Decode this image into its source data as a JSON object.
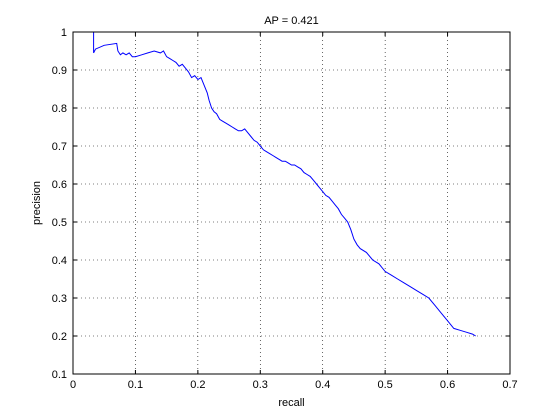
{
  "chart_data": {
    "type": "line",
    "title": "AP = 0.421",
    "xlabel": "recall",
    "ylabel": "precision",
    "xlim": [
      0,
      0.7
    ],
    "ylim": [
      0.1,
      1
    ],
    "xticks": [
      0,
      0.1,
      0.2,
      0.3,
      0.4,
      0.5,
      0.6,
      0.7
    ],
    "yticks": [
      0.1,
      0.2,
      0.3,
      0.4,
      0.5,
      0.6,
      0.7,
      0.8,
      0.9,
      1
    ],
    "xtick_labels": [
      "0",
      "0.1",
      "0.2",
      "0.3",
      "0.4",
      "0.5",
      "0.6",
      "0.7"
    ],
    "ytick_labels": [
      "0.1",
      "0.2",
      "0.3",
      "0.4",
      "0.5",
      "0.6",
      "0.7",
      "0.8",
      "0.9",
      "1"
    ],
    "grid": true,
    "grid_style": "dotted",
    "line_color": "#0000ff",
    "series": [
      {
        "x": [
          0.033,
          0.033,
          0.036,
          0.05,
          0.07,
          0.072,
          0.076,
          0.08,
          0.085,
          0.09,
          0.095,
          0.1,
          0.11,
          0.12,
          0.13,
          0.14,
          0.145,
          0.15,
          0.155,
          0.16,
          0.165,
          0.17,
          0.175,
          0.18,
          0.185,
          0.19,
          0.195,
          0.2,
          0.205,
          0.21,
          0.215,
          0.218,
          0.222,
          0.226,
          0.23,
          0.235,
          0.24,
          0.245,
          0.25,
          0.255,
          0.26,
          0.265,
          0.27,
          0.275,
          0.28,
          0.285,
          0.29,
          0.295,
          0.3,
          0.305,
          0.31,
          0.315,
          0.32,
          0.325,
          0.33,
          0.335,
          0.34,
          0.345,
          0.35,
          0.355,
          0.36,
          0.365,
          0.37,
          0.375,
          0.38,
          0.385,
          0.39,
          0.395,
          0.4,
          0.405,
          0.41,
          0.415,
          0.42,
          0.425,
          0.43,
          0.435,
          0.44,
          0.445,
          0.45,
          0.455,
          0.46,
          0.47,
          0.48,
          0.49,
          0.5,
          0.51,
          0.52,
          0.53,
          0.54,
          0.55,
          0.56,
          0.57,
          0.58,
          0.59,
          0.6,
          0.61,
          0.62,
          0.63,
          0.64,
          0.645
        ],
        "y": [
          1.0,
          0.945,
          0.955,
          0.965,
          0.97,
          0.95,
          0.94,
          0.945,
          0.94,
          0.945,
          0.935,
          0.935,
          0.94,
          0.945,
          0.95,
          0.945,
          0.95,
          0.935,
          0.93,
          0.925,
          0.92,
          0.91,
          0.915,
          0.905,
          0.895,
          0.88,
          0.885,
          0.875,
          0.88,
          0.86,
          0.84,
          0.82,
          0.8,
          0.79,
          0.785,
          0.77,
          0.765,
          0.76,
          0.755,
          0.75,
          0.745,
          0.74,
          0.74,
          0.745,
          0.735,
          0.725,
          0.715,
          0.71,
          0.7,
          0.69,
          0.685,
          0.68,
          0.675,
          0.67,
          0.665,
          0.66,
          0.66,
          0.655,
          0.65,
          0.65,
          0.645,
          0.64,
          0.63,
          0.625,
          0.62,
          0.61,
          0.6,
          0.59,
          0.58,
          0.57,
          0.565,
          0.555,
          0.545,
          0.535,
          0.52,
          0.51,
          0.5,
          0.48,
          0.455,
          0.44,
          0.43,
          0.42,
          0.4,
          0.39,
          0.37,
          0.36,
          0.35,
          0.34,
          0.33,
          0.32,
          0.31,
          0.3,
          0.28,
          0.26,
          0.24,
          0.22,
          0.215,
          0.21,
          0.205,
          0.2
        ]
      }
    ]
  }
}
